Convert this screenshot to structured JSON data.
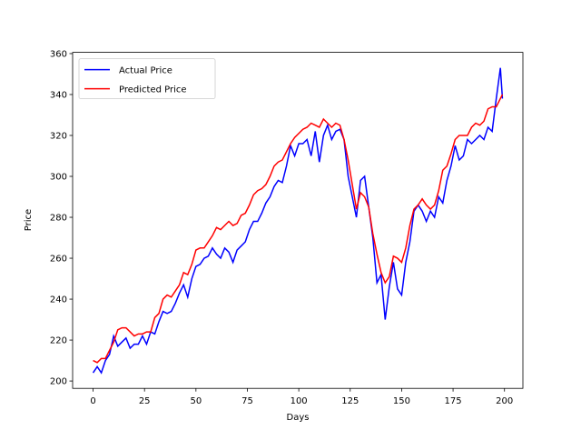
{
  "chart_data": {
    "type": "line",
    "xlabel": "Days",
    "ylabel": "Price",
    "x": [
      0,
      2,
      4,
      6,
      8,
      10,
      12,
      14,
      16,
      18,
      20,
      22,
      24,
      26,
      28,
      30,
      32,
      34,
      36,
      38,
      40,
      42,
      44,
      46,
      48,
      50,
      52,
      54,
      56,
      58,
      60,
      62,
      64,
      66,
      68,
      70,
      72,
      74,
      76,
      78,
      80,
      82,
      84,
      86,
      88,
      90,
      92,
      94,
      96,
      98,
      100,
      102,
      104,
      106,
      108,
      110,
      112,
      114,
      116,
      118,
      120,
      122,
      124,
      126,
      128,
      130,
      132,
      134,
      136,
      138,
      140,
      142,
      144,
      146,
      148,
      150,
      152,
      154,
      156,
      158,
      160,
      162,
      164,
      166,
      168,
      170,
      172,
      174,
      176,
      178,
      180,
      182,
      184,
      186,
      188,
      190,
      192,
      194,
      196,
      198,
      199
    ],
    "series": [
      {
        "name": "Actual Price",
        "color": "#0000ff",
        "values": [
          204,
          207,
          204,
          210,
          213,
          222,
          217,
          219,
          221,
          216,
          218,
          218,
          222,
          218,
          224,
          223,
          229,
          234,
          233,
          234,
          238,
          243,
          247,
          241,
          250,
          256,
          257,
          260,
          261,
          265,
          262,
          260,
          265,
          263,
          258,
          264,
          266,
          268,
          274,
          278,
          278,
          282,
          287,
          290,
          295,
          298,
          297,
          305,
          315,
          310,
          316,
          316,
          318,
          310,
          322,
          307,
          320,
          325,
          318,
          322,
          323,
          318,
          300,
          290,
          280,
          298,
          300,
          285,
          270,
          248,
          252,
          230,
          246,
          258,
          245,
          242,
          258,
          268,
          283,
          286,
          283,
          278,
          283,
          280,
          290,
          287,
          298,
          305,
          315,
          308,
          310,
          318,
          316,
          318,
          320,
          318,
          324,
          322,
          338,
          353,
          338
        ]
      },
      {
        "name": "Predicted Price",
        "color": "#ff0000",
        "values": [
          210,
          209,
          211,
          211,
          215,
          219,
          225,
          226,
          226,
          224,
          222,
          223,
          223,
          224,
          224,
          231,
          233,
          240,
          242,
          241,
          244,
          247,
          253,
          252,
          257,
          264,
          265,
          265,
          268,
          271,
          275,
          274,
          276,
          278,
          276,
          277,
          281,
          282,
          286,
          291,
          293,
          294,
          296,
          300,
          305,
          307,
          308,
          312,
          316,
          319,
          321,
          323,
          324,
          326,
          325,
          324,
          328,
          326,
          324,
          326,
          325,
          318,
          308,
          296,
          284,
          292,
          290,
          285,
          272,
          262,
          253,
          248,
          251,
          261,
          260,
          258,
          265,
          276,
          284,
          286,
          289,
          286,
          284,
          286,
          293,
          303,
          305,
          311,
          318,
          320,
          320,
          320,
          324,
          326,
          325,
          327,
          333,
          334,
          334,
          338,
          340
        ]
      }
    ],
    "xlim": [
      -9.95,
      208.95
    ],
    "xticks": [
      0,
      25,
      50,
      75,
      100,
      125,
      150,
      175,
      200
    ],
    "ylim": [
      196.4,
      360.6
    ],
    "yticks": [
      200,
      220,
      240,
      260,
      280,
      300,
      320,
      340,
      360
    ],
    "legend": "upper left"
  }
}
